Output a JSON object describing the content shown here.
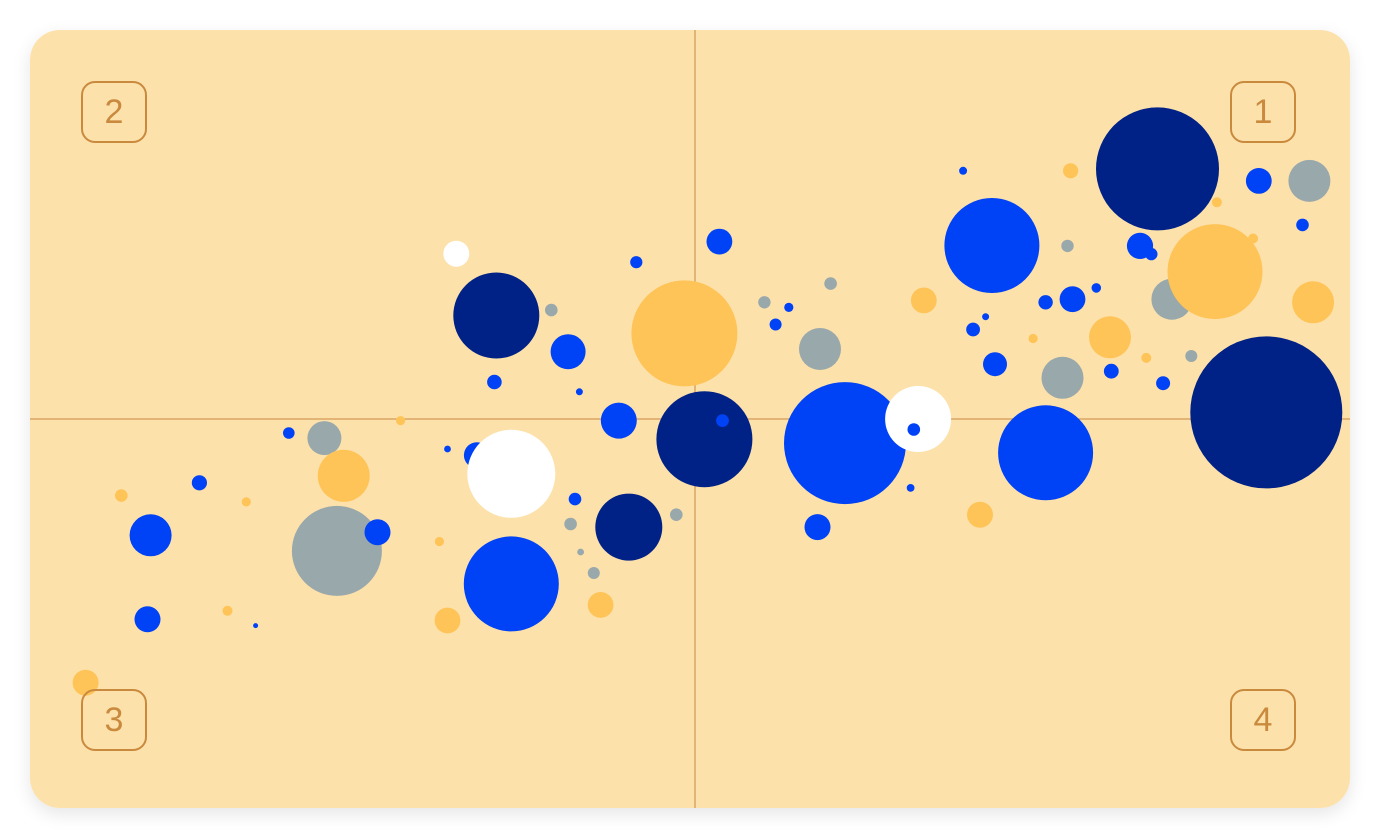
{
  "colors": {
    "background": "#fde1ab",
    "axis": "#d9a564",
    "navy": "#002185",
    "blue": "#0042f5",
    "yellow": "#fec458",
    "gray": "#99a8ab",
    "white": "#ffffff"
  },
  "quadrants": {
    "q1": "1",
    "q2": "2",
    "q3": "3",
    "q4": "4"
  },
  "chart_data": {
    "type": "scatter",
    "title": "",
    "xlabel": "",
    "ylabel": "",
    "xlim": [
      -100,
      100
    ],
    "ylim": [
      -100,
      100
    ],
    "grid": false,
    "axes_at_origin": true,
    "points": [
      {
        "x": -59.3,
        "y": -4.9,
        "r": 17.0,
        "color": "gray"
      },
      {
        "x": -91.8,
        "y": -19.7,
        "r": 6.3,
        "color": "yellow"
      },
      {
        "x": -79.3,
        "y": -16.4,
        "r": 7.6,
        "color": "blue"
      },
      {
        "x": -71.8,
        "y": -21.3,
        "r": 4.6,
        "color": "yellow"
      },
      {
        "x": -65.0,
        "y": -3.6,
        "r": 5.8,
        "color": "blue"
      },
      {
        "x": -56.2,
        "y": -14.6,
        "r": 26.0,
        "color": "yellow"
      },
      {
        "x": -47.1,
        "y": -0.4,
        "r": 4.6,
        "color": "yellow"
      },
      {
        "x": -39.6,
        "y": -7.7,
        "r": 3.4,
        "color": "blue"
      },
      {
        "x": -57.3,
        "y": -33.9,
        "r": 45.0,
        "color": "gray"
      },
      {
        "x": -50.8,
        "y": -29.1,
        "r": 13.0,
        "color": "blue"
      },
      {
        "x": -87.1,
        "y": -29.9,
        "r": 21.0,
        "color": "blue"
      },
      {
        "x": -87.6,
        "y": -51.5,
        "r": 13.0,
        "color": "blue"
      },
      {
        "x": -74.8,
        "y": -49.3,
        "r": 5.0,
        "color": "yellow"
      },
      {
        "x": -70.3,
        "y": -53.1,
        "r": 2.5,
        "color": "blue"
      },
      {
        "x": -97.5,
        "y": -67.8,
        "r": 13.0,
        "color": "yellow"
      },
      {
        "x": -38.2,
        "y": 42.5,
        "r": 13.0,
        "color": "white"
      },
      {
        "x": -36.7,
        "y": 24.8,
        "r": 6.3,
        "color": "blue"
      },
      {
        "x": -31.8,
        "y": 26.6,
        "r": 43.0,
        "color": "navy"
      },
      {
        "x": -32.1,
        "y": 9.5,
        "r": 7.3,
        "color": "blue"
      },
      {
        "x": -23.0,
        "y": 28.0,
        "r": 6.3,
        "color": "gray"
      },
      {
        "x": -20.3,
        "y": 17.3,
        "r": 17.5,
        "color": "blue"
      },
      {
        "x": -18.5,
        "y": 7.0,
        "r": 3.5,
        "color": "blue"
      },
      {
        "x": -9.4,
        "y": 40.3,
        "r": 6.1,
        "color": "blue"
      },
      {
        "x": -1.7,
        "y": 22.0,
        "r": 53.0,
        "color": "yellow"
      },
      {
        "x": 3.9,
        "y": 45.6,
        "r": 12.9,
        "color": "blue"
      },
      {
        "x": 11.1,
        "y": 30.0,
        "r": 6.2,
        "color": "gray"
      },
      {
        "x": 12.9,
        "y": 24.3,
        "r": 6.0,
        "color": "blue"
      },
      {
        "x": 15.0,
        "y": 28.7,
        "r": 4.6,
        "color": "blue"
      },
      {
        "x": 20.0,
        "y": 18.0,
        "r": 21.0,
        "color": "gray"
      },
      {
        "x": 21.7,
        "y": 34.8,
        "r": 6.3,
        "color": "gray"
      },
      {
        "x": -12.2,
        "y": -0.4,
        "r": 18.0,
        "color": "blue"
      },
      {
        "x": -34.9,
        "y": -9.3,
        "r": 13.0,
        "color": "blue"
      },
      {
        "x": -29.4,
        "y": -14.1,
        "r": 44.0,
        "color": "white"
      },
      {
        "x": -19.2,
        "y": -20.6,
        "r": 6.3,
        "color": "blue"
      },
      {
        "x": -19.9,
        "y": -27.0,
        "r": 6.3,
        "color": "gray"
      },
      {
        "x": -18.3,
        "y": -34.2,
        "r": 3.4,
        "color": "gray"
      },
      {
        "x": -16.2,
        "y": -39.6,
        "r": 6.0,
        "color": "gray"
      },
      {
        "x": -15.1,
        "y": -47.8,
        "r": 12.9,
        "color": "yellow"
      },
      {
        "x": -29.4,
        "y": -42.4,
        "r": 47.5,
        "color": "blue"
      },
      {
        "x": -40.9,
        "y": -31.5,
        "r": 4.6,
        "color": "yellow"
      },
      {
        "x": -39.6,
        "y": -51.8,
        "r": 12.9,
        "color": "yellow"
      },
      {
        "x": -10.6,
        "y": -27.8,
        "r": 33.5,
        "color": "navy"
      },
      {
        "x": -3.0,
        "y": -24.6,
        "r": 6.3,
        "color": "gray"
      },
      {
        "x": 1.5,
        "y": -5.2,
        "r": 48.0,
        "color": "navy"
      },
      {
        "x": 4.4,
        "y": -0.4,
        "r": 6.4,
        "color": "blue"
      },
      {
        "x": 19.6,
        "y": -27.8,
        "r": 13.0,
        "color": "blue"
      },
      {
        "x": 24.0,
        "y": -6.2,
        "r": 61.0,
        "color": "blue"
      },
      {
        "x": 42.9,
        "y": 63.8,
        "r": 4.0,
        "color": "blue"
      },
      {
        "x": 36.6,
        "y": 30.5,
        "r": 12.9,
        "color": "yellow"
      },
      {
        "x": 44.5,
        "y": 23.0,
        "r": 6.9,
        "color": "blue"
      },
      {
        "x": 46.5,
        "y": 26.3,
        "r": 3.5,
        "color": "blue"
      },
      {
        "x": 48.0,
        "y": 14.1,
        "r": 12.0,
        "color": "blue"
      },
      {
        "x": 47.5,
        "y": 44.6,
        "r": 47.5,
        "color": "blue"
      },
      {
        "x": 54.1,
        "y": 20.7,
        "r": 4.6,
        "color": "yellow"
      },
      {
        "x": 56.1,
        "y": 30.0,
        "r": 7.2,
        "color": "blue"
      },
      {
        "x": 59.6,
        "y": 44.5,
        "r": 6.2,
        "color": "gray"
      },
      {
        "x": 58.8,
        "y": 10.6,
        "r": 21.0,
        "color": "gray"
      },
      {
        "x": 60.4,
        "y": 30.8,
        "r": 12.9,
        "color": "blue"
      },
      {
        "x": 64.2,
        "y": 33.7,
        "r": 4.8,
        "color": "blue"
      },
      {
        "x": 66.4,
        "y": 21.0,
        "r": 21.0,
        "color": "yellow"
      },
      {
        "x": 66.6,
        "y": 12.3,
        "r": 7.4,
        "color": "blue"
      },
      {
        "x": 60.1,
        "y": 63.8,
        "r": 7.6,
        "color": "yellow"
      },
      {
        "x": 71.2,
        "y": 44.5,
        "r": 13.1,
        "color": "blue"
      },
      {
        "x": 73.0,
        "y": 42.4,
        "r": 6.2,
        "color": "blue"
      },
      {
        "x": 72.2,
        "y": 15.7,
        "r": 5.0,
        "color": "yellow"
      },
      {
        "x": 74.9,
        "y": 9.2,
        "r": 7.0,
        "color": "blue"
      },
      {
        "x": 76.3,
        "y": 30.8,
        "r": 20.5,
        "color": "gray"
      },
      {
        "x": 79.4,
        "y": 16.2,
        "r": 6.0,
        "color": "gray"
      },
      {
        "x": 74.0,
        "y": 64.3,
        "r": 61.5,
        "color": "navy"
      },
      {
        "x": 83.5,
        "y": 55.7,
        "r": 5.0,
        "color": "yellow"
      },
      {
        "x": 83.2,
        "y": 37.9,
        "r": 47.5,
        "color": "yellow"
      },
      {
        "x": 89.3,
        "y": 46.4,
        "r": 5.0,
        "color": "yellow"
      },
      {
        "x": 90.2,
        "y": 61.2,
        "r": 12.9,
        "color": "blue"
      },
      {
        "x": 98.3,
        "y": 61.2,
        "r": 21.0,
        "color": "gray"
      },
      {
        "x": 97.2,
        "y": 49.9,
        "r": 6.3,
        "color": "blue"
      },
      {
        "x": 98.9,
        "y": 30.0,
        "r": 21.0,
        "color": "yellow"
      },
      {
        "x": 35.7,
        "y": 0.0,
        "r": 33.0,
        "color": "white"
      },
      {
        "x": 35.0,
        "y": -2.7,
        "r": 6.3,
        "color": "blue"
      },
      {
        "x": 34.5,
        "y": -17.7,
        "r": 3.9,
        "color": "blue"
      },
      {
        "x": 56.1,
        "y": -8.7,
        "r": 47.5,
        "color": "blue"
      },
      {
        "x": 91.4,
        "y": 1.7,
        "r": 76.0,
        "color": "navy"
      },
      {
        "x": 45.6,
        "y": -24.6,
        "r": 13.0,
        "color": "yellow"
      }
    ]
  }
}
